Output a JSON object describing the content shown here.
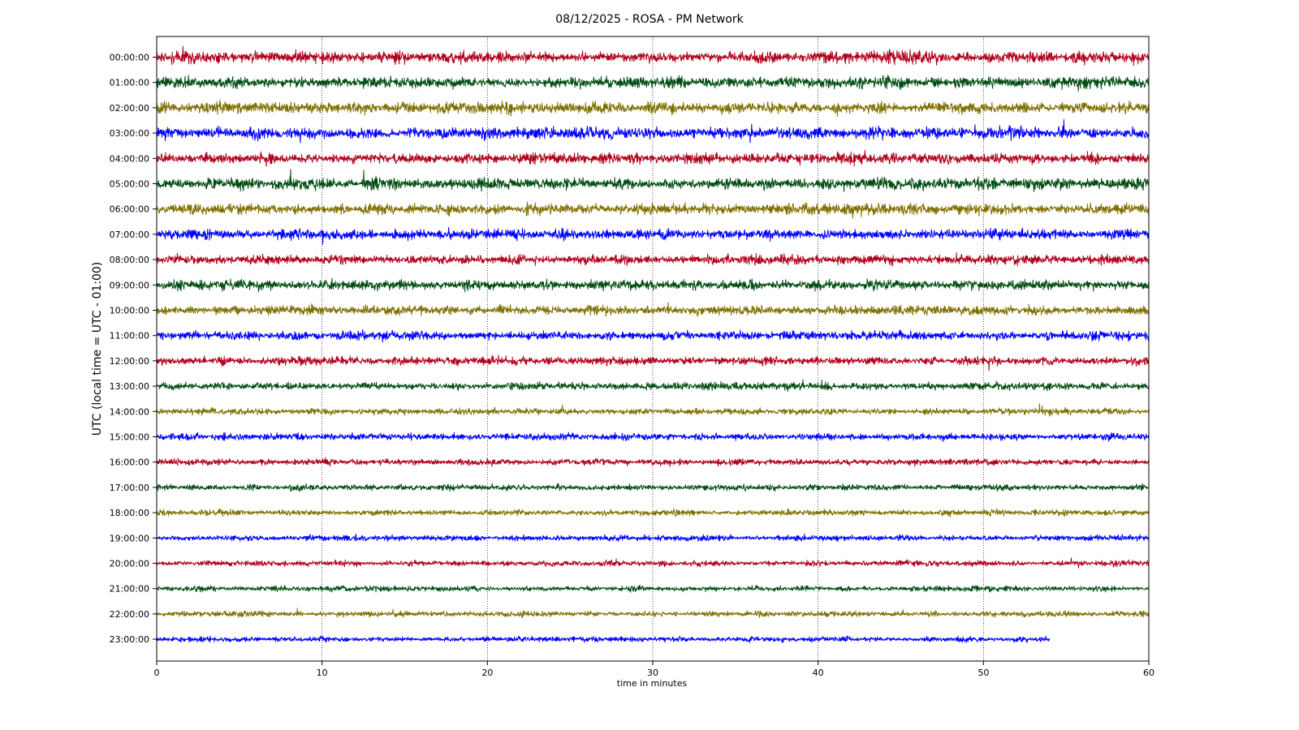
{
  "chart_data": {
    "type": "line",
    "title": "08/12/2025 - ROSA - PM Network",
    "xlabel": "time in minutes",
    "ylabel": "UTC (local time = UTC - 01:00)",
    "xlim": [
      0,
      60
    ],
    "x_ticks": [
      "0",
      "10",
      "20",
      "30",
      "40",
      "50",
      "60"
    ],
    "x_grid": [
      10,
      20,
      30,
      40,
      50
    ],
    "grid": true,
    "legend": "none",
    "colors": [
      "#b0001a",
      "#004d12",
      "#7f6f00",
      "#0000ff"
    ],
    "series": [
      {
        "label": "00:00:00",
        "end_minute": 60,
        "amplitude": 0.3
      },
      {
        "label": "01:00:00",
        "end_minute": 60,
        "amplitude": 0.29
      },
      {
        "label": "02:00:00",
        "end_minute": 60,
        "amplitude": 0.28
      },
      {
        "label": "03:00:00",
        "end_minute": 60,
        "amplitude": 0.3
      },
      {
        "label": "04:00:00",
        "end_minute": 60,
        "amplitude": 0.28
      },
      {
        "label": "05:00:00",
        "end_minute": 60,
        "amplitude": 0.3
      },
      {
        "label": "06:00:00",
        "end_minute": 60,
        "amplitude": 0.27
      },
      {
        "label": "07:00:00",
        "end_minute": 60,
        "amplitude": 0.26
      },
      {
        "label": "08:00:00",
        "end_minute": 60,
        "amplitude": 0.25
      },
      {
        "label": "09:00:00",
        "end_minute": 60,
        "amplitude": 0.25
      },
      {
        "label": "10:00:00",
        "end_minute": 60,
        "amplitude": 0.23
      },
      {
        "label": "11:00:00",
        "end_minute": 60,
        "amplitude": 0.23
      },
      {
        "label": "12:00:00",
        "end_minute": 60,
        "amplitude": 0.21
      },
      {
        "label": "13:00:00",
        "end_minute": 60,
        "amplitude": 0.19
      },
      {
        "label": "14:00:00",
        "end_minute": 60,
        "amplitude": 0.16
      },
      {
        "label": "15:00:00",
        "end_minute": 60,
        "amplitude": 0.17
      },
      {
        "label": "16:00:00",
        "end_minute": 60,
        "amplitude": 0.16
      },
      {
        "label": "17:00:00",
        "end_minute": 60,
        "amplitude": 0.15
      },
      {
        "label": "18:00:00",
        "end_minute": 60,
        "amplitude": 0.15
      },
      {
        "label": "19:00:00",
        "end_minute": 60,
        "amplitude": 0.15
      },
      {
        "label": "20:00:00",
        "end_minute": 60,
        "amplitude": 0.14
      },
      {
        "label": "21:00:00",
        "end_minute": 60,
        "amplitude": 0.14
      },
      {
        "label": "22:00:00",
        "end_minute": 60,
        "amplitude": 0.14
      },
      {
        "label": "23:00:00",
        "end_minute": 54,
        "amplitude": 0.13
      }
    ]
  }
}
